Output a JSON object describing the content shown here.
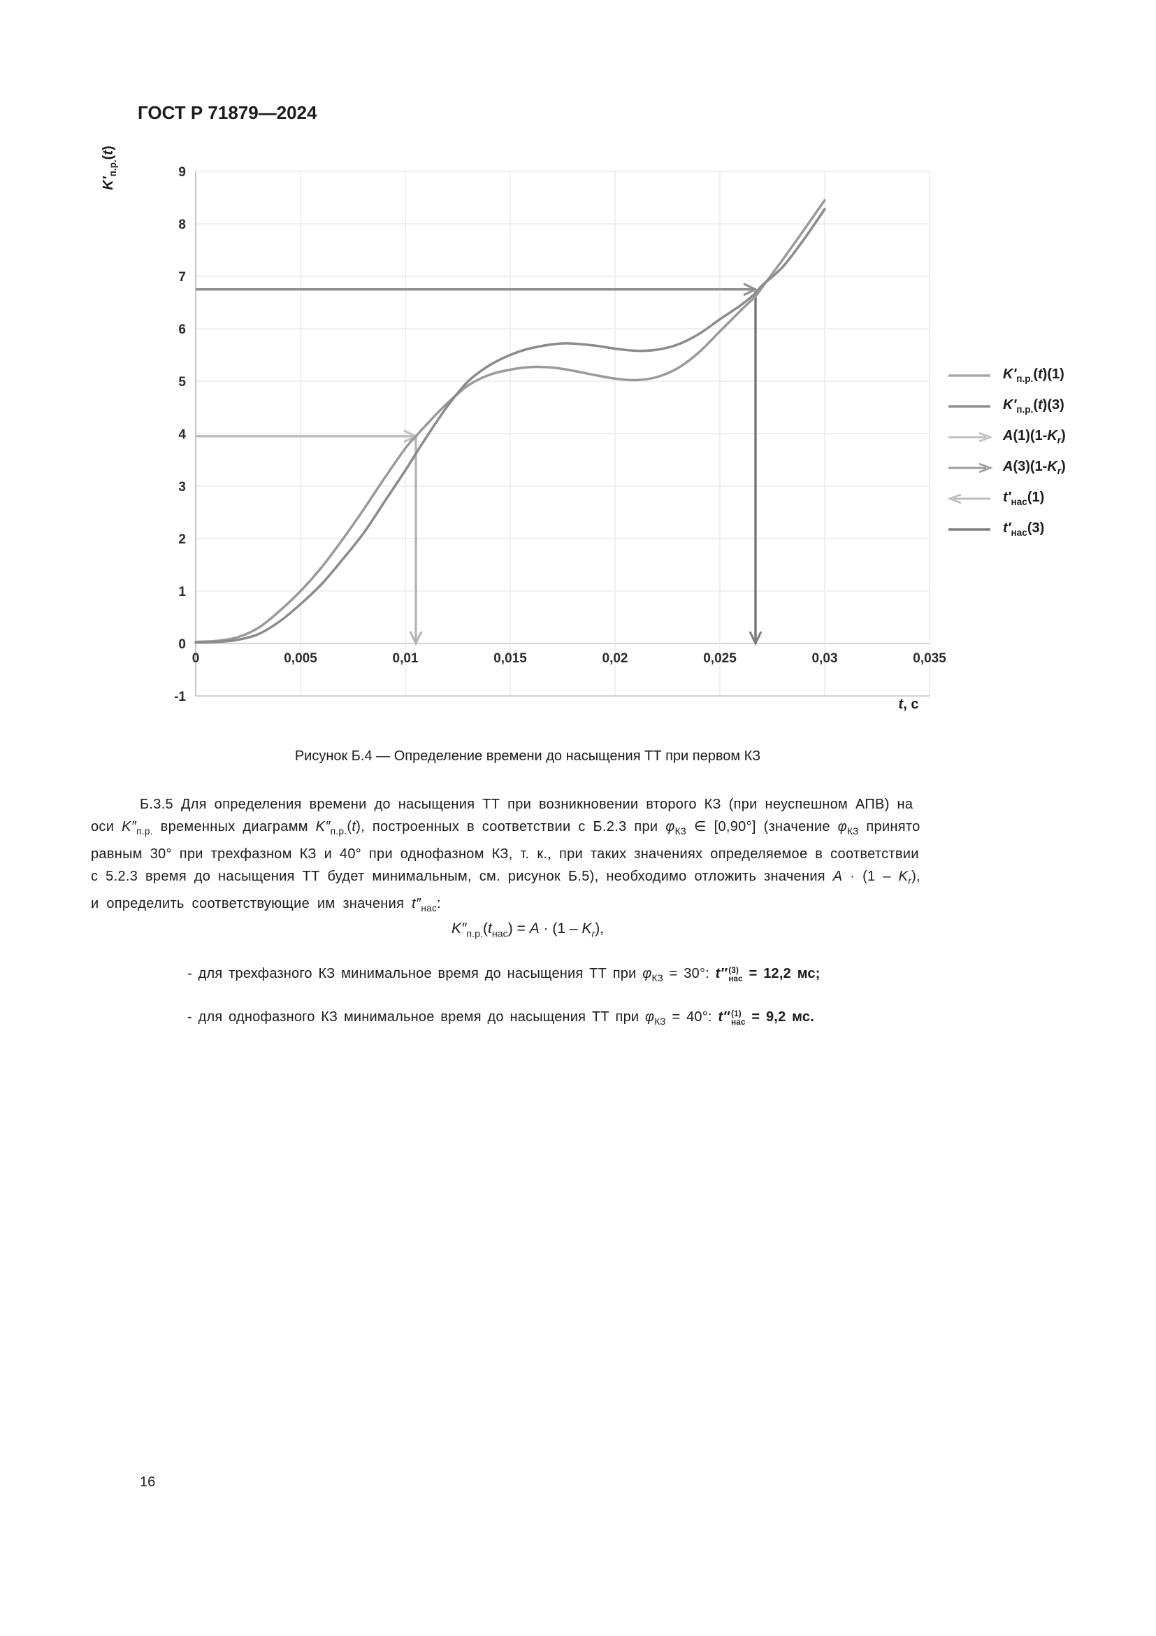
{
  "page": {
    "header": "ГОСТ Р 71879—2024",
    "caption": "Рисунок Б.4 — Определение времени до насыщения ТТ при первом КЗ",
    "page_number": "16"
  },
  "paragraph": {
    "lines": [
      [
        {
          "t": "Б.3.5  Для определения времени до насыщения ТТ при возникновении второго КЗ (при неуспешном АПВ) на"
        }
      ],
      [
        {
          "t": "оси "
        },
        {
          "t": "K″",
          "s": "it"
        },
        {
          "t": "п.р.",
          "s": "sb"
        },
        {
          "t": " временных диаграмм "
        },
        {
          "t": "K″",
          "s": "it"
        },
        {
          "t": "п.р.",
          "s": "sb"
        },
        {
          "t": "("
        },
        {
          "t": "t",
          "s": "it"
        },
        {
          "t": "), построенных в соответствии с Б.2.3 при "
        },
        {
          "t": "φ",
          "s": "it"
        },
        {
          "t": "КЗ",
          "s": "sb"
        },
        {
          "t": " ∈ [0,90°] (значение "
        },
        {
          "t": "φ",
          "s": "it"
        },
        {
          "t": "КЗ",
          "s": "sb"
        },
        {
          "t": " принято"
        }
      ],
      [
        {
          "t": "равным 30° при трехфазном КЗ и 40° при однофазном КЗ, т. к., при таких значениях определяемое в соответствии"
        }
      ],
      [
        {
          "t": "с 5.2.3 время до насыщения ТТ будет минимальным, см. рисунок Б.5), необходимо отложить значения "
        },
        {
          "t": "A",
          "s": "it"
        },
        {
          "t": " · (1 – "
        },
        {
          "t": "K",
          "s": "it"
        },
        {
          "t": "r",
          "s": "it sb"
        },
        {
          "t": "),"
        }
      ],
      [
        {
          "t": "и определить соответствующие им значения "
        },
        {
          "t": "t″",
          "s": "it"
        },
        {
          "t": "нас",
          "s": "sb"
        },
        {
          "t": ":"
        }
      ]
    ]
  },
  "formula": [
    {
      "t": "K″",
      "s": "it"
    },
    {
      "t": "п.р.",
      "s": "sb"
    },
    {
      "t": "("
    },
    {
      "t": "t",
      "s": "it"
    },
    {
      "t": "нас",
      "s": "sb"
    },
    {
      "t": ") = "
    },
    {
      "t": "A",
      "s": "it"
    },
    {
      "t": " · (1 – "
    },
    {
      "t": "K",
      "s": "it"
    },
    {
      "t": "r",
      "s": "it sb"
    },
    {
      "t": "),"
    }
  ],
  "bullets": [
    {
      "runs": [
        {
          "t": "-  для трехфазного КЗ минимальное время до насыщения ТТ при "
        },
        {
          "t": "φ",
          "s": "it"
        },
        {
          "t": "КЗ",
          "s": "sb"
        },
        {
          "t": " = 30°:  "
        },
        {
          "t": "t″",
          "s": "it bd"
        },
        {
          "t": "(3)\nнас",
          "s": "bd stk"
        },
        {
          "t": " = 12,2 мс;",
          "s": "bd"
        }
      ]
    },
    {
      "runs": [
        {
          "t": "-  для однофазного КЗ минимальное время до насыщения ТТ при "
        },
        {
          "t": "φ",
          "s": "it"
        },
        {
          "t": "КЗ",
          "s": "sb"
        },
        {
          "t": " = 40°:  "
        },
        {
          "t": "t″",
          "s": "it bd"
        },
        {
          "t": "(1)\nнас",
          "s": "bd stk"
        },
        {
          "t": " = 9,2 мс.",
          "s": "bd"
        }
      ]
    }
  ],
  "chart_data": {
    "type": "line",
    "grid": "on",
    "legend_position": "right",
    "x": {
      "min": 0,
      "max": 0.035,
      "tick_values": [
        0,
        0.005,
        0.01,
        0.015,
        0.02,
        0.025,
        0.03,
        0.035
      ],
      "tick_labels": [
        "0",
        "0,005",
        "0,01",
        "0,015",
        "0,02",
        "0,025",
        "0,03",
        "0,035"
      ],
      "label_runs": [
        {
          "t": "t",
          "s": "it"
        },
        {
          "t": ", с"
        }
      ]
    },
    "y": {
      "min": -1,
      "max": 9,
      "tick_values": [
        -1,
        0,
        1,
        2,
        3,
        4,
        5,
        6,
        7,
        8,
        9
      ],
      "tick_labels": [
        "-1",
        "0",
        "1",
        "2",
        "3",
        "4",
        "5",
        "6",
        "7",
        "8",
        "9"
      ],
      "label_runs": [
        {
          "t": "K′",
          "s": "it"
        },
        {
          "t": "п.р.",
          "s": "sb"
        },
        {
          "t": "("
        },
        {
          "t": "t",
          "s": "it"
        },
        {
          "t": ")"
        }
      ]
    },
    "series": [
      {
        "name": "K'п.р.(t)(1)",
        "color": "#9a9a9a",
        "points": [
          [
            0,
            0.03
          ],
          [
            0.001,
            0.05
          ],
          [
            0.002,
            0.12
          ],
          [
            0.003,
            0.3
          ],
          [
            0.004,
            0.62
          ],
          [
            0.005,
            1.0
          ],
          [
            0.006,
            1.45
          ],
          [
            0.007,
            1.98
          ],
          [
            0.008,
            2.55
          ],
          [
            0.009,
            3.15
          ],
          [
            0.01,
            3.72
          ],
          [
            0.0105,
            3.95
          ],
          [
            0.011,
            4.17
          ],
          [
            0.012,
            4.58
          ],
          [
            0.013,
            4.92
          ],
          [
            0.014,
            5.12
          ],
          [
            0.015,
            5.22
          ],
          [
            0.016,
            5.27
          ],
          [
            0.017,
            5.26
          ],
          [
            0.018,
            5.2
          ],
          [
            0.019,
            5.12
          ],
          [
            0.02,
            5.05
          ],
          [
            0.021,
            5.02
          ],
          [
            0.022,
            5.08
          ],
          [
            0.023,
            5.25
          ],
          [
            0.024,
            5.55
          ],
          [
            0.025,
            5.95
          ],
          [
            0.026,
            6.35
          ],
          [
            0.0267,
            6.62
          ],
          [
            0.027,
            6.78
          ],
          [
            0.028,
            7.32
          ],
          [
            0.029,
            7.88
          ],
          [
            0.03,
            8.45
          ]
        ]
      },
      {
        "name": "K'п.р.(t)(3)",
        "color": "#8b8b8b",
        "points": [
          [
            0,
            0.02
          ],
          [
            0.001,
            0.03
          ],
          [
            0.002,
            0.07
          ],
          [
            0.003,
            0.18
          ],
          [
            0.004,
            0.42
          ],
          [
            0.005,
            0.75
          ],
          [
            0.006,
            1.13
          ],
          [
            0.007,
            1.6
          ],
          [
            0.008,
            2.1
          ],
          [
            0.009,
            2.7
          ],
          [
            0.01,
            3.3
          ],
          [
            0.0105,
            3.62
          ],
          [
            0.011,
            3.93
          ],
          [
            0.012,
            4.52
          ],
          [
            0.013,
            5.0
          ],
          [
            0.014,
            5.3
          ],
          [
            0.015,
            5.5
          ],
          [
            0.016,
            5.63
          ],
          [
            0.0175,
            5.72
          ],
          [
            0.019,
            5.68
          ],
          [
            0.02,
            5.62
          ],
          [
            0.021,
            5.58
          ],
          [
            0.022,
            5.6
          ],
          [
            0.023,
            5.7
          ],
          [
            0.024,
            5.9
          ],
          [
            0.025,
            6.18
          ],
          [
            0.026,
            6.45
          ],
          [
            0.0267,
            6.68
          ],
          [
            0.027,
            6.82
          ],
          [
            0.028,
            7.18
          ],
          [
            0.029,
            7.7
          ],
          [
            0.03,
            8.28
          ]
        ]
      }
    ],
    "annotations": [
      {
        "id": "A1",
        "name": "A(1)(1-Kr)",
        "type": "h-arrow",
        "y": 3.95,
        "x_from": 0,
        "x_to": 0.0105,
        "color": "#bfbfbf"
      },
      {
        "id": "A3",
        "name": "A(3)(1-Kr)",
        "type": "h-arrow",
        "y": 6.75,
        "x_from": 0,
        "x_to": 0.0267,
        "color": "#8f8f8f"
      },
      {
        "id": "tnas1",
        "name": "t'нас(1)",
        "type": "v-arrow",
        "x": 0.0105,
        "y_from": 3.95,
        "y_to": 0,
        "color": "#b5b5b5"
      },
      {
        "id": "tnas3",
        "name": "t'нас(3)",
        "type": "v-arrow",
        "x": 0.0267,
        "y_from": 6.72,
        "y_to": 0,
        "color": "#7b7b7b"
      }
    ],
    "legend": [
      {
        "symbol": "line",
        "color": "#a8a8a8",
        "label_runs": [
          {
            "t": "K′",
            "s": "it"
          },
          {
            "t": "п.р.",
            "s": "sb"
          },
          {
            "t": "("
          },
          {
            "t": "t",
            "s": "it"
          },
          {
            "t": ")(1)"
          }
        ]
      },
      {
        "symbol": "line",
        "color": "#8f8f8f",
        "label_runs": [
          {
            "t": "K′",
            "s": "it"
          },
          {
            "t": "п.р.",
            "s": "sb"
          },
          {
            "t": "("
          },
          {
            "t": "t",
            "s": "it"
          },
          {
            "t": ")(3)"
          }
        ]
      },
      {
        "symbol": "arrow-right",
        "color": "#c2c2c2",
        "label_runs": [
          {
            "t": "A",
            "s": "it"
          },
          {
            "t": "(1)(1-"
          },
          {
            "t": "K",
            "s": "it"
          },
          {
            "t": "r",
            "s": "it sb"
          },
          {
            "t": ")"
          }
        ]
      },
      {
        "symbol": "arrow-right",
        "color": "#9c9c9c",
        "label_runs": [
          {
            "t": "A",
            "s": "it"
          },
          {
            "t": "(3)(1-"
          },
          {
            "t": "K",
            "s": "it"
          },
          {
            "t": "r",
            "s": "it sb"
          },
          {
            "t": ")"
          }
        ]
      },
      {
        "symbol": "arrow-left",
        "color": "#bcbcbc",
        "label_runs": [
          {
            "t": "t′",
            "s": "it"
          },
          {
            "t": "нас",
            "s": "sb"
          },
          {
            "t": "(1)"
          }
        ]
      },
      {
        "symbol": "line",
        "color": "#7e7e7e",
        "label_runs": [
          {
            "t": "t′",
            "s": "it"
          },
          {
            "t": "нас",
            "s": "sb"
          },
          {
            "t": "(3)"
          }
        ]
      }
    ]
  }
}
